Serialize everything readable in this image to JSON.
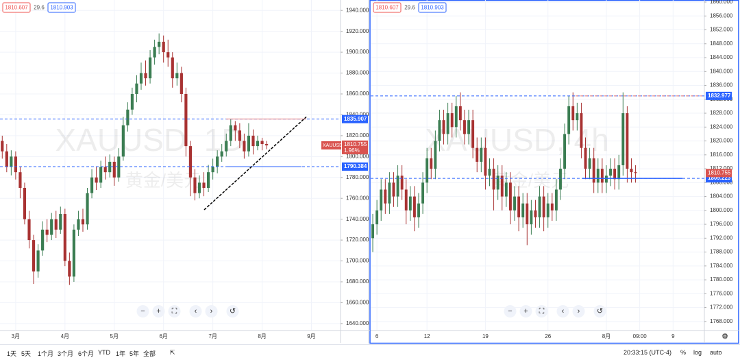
{
  "chart_data": [
    {
      "type": "candlestick",
      "watermark": "XAUUSD, 1D",
      "watermark_sub": "黄金/美元",
      "legend_values": [
        {
          "value": 1810.607,
          "color": "#ef5350"
        },
        {
          "value": 29.6,
          "color": "#555555"
        },
        {
          "value": 1810.903,
          "color": "#2962ff"
        }
      ],
      "categories": [
        null,
        null,
        null,
        "3月",
        null,
        null,
        null,
        null,
        null,
        null,
        null,
        null,
        null,
        null,
        "4月",
        null,
        null,
        null,
        null,
        null,
        null,
        null,
        null,
        null,
        null,
        "5月",
        null,
        null,
        null,
        null,
        null,
        null,
        null,
        null,
        null,
        null,
        "6月",
        null,
        null,
        null,
        null,
        null,
        null,
        null,
        null,
        null,
        null,
        "7月",
        null,
        null,
        null,
        null,
        null,
        null,
        null,
        null,
        null,
        null,
        "8月",
        null,
        null,
        null,
        null,
        null,
        null,
        null,
        null,
        null,
        null,
        "9月",
        null,
        null,
        null,
        null,
        null,
        null
      ],
      "open": [
        1815,
        1805,
        1790,
        1800,
        1785,
        1770,
        1740,
        1720,
        1690,
        1710,
        1730,
        1725,
        1740,
        1730,
        1745,
        1700,
        1685,
        1730,
        1740,
        1735,
        1765,
        1780,
        1775,
        1790,
        1785,
        1795,
        1780,
        1800,
        1830,
        1845,
        1860,
        1870,
        1880,
        1875,
        1895,
        1905,
        1910,
        1900,
        1895,
        1875,
        1880,
        1860,
        1810,
        1780,
        1765,
        1775,
        1770,
        1785,
        1790,
        1800,
        1805,
        1815,
        1830,
        1825,
        1815,
        1805,
        1820,
        1810,
        1815,
        1812,
        null,
        null,
        null,
        null,
        null,
        null,
        null,
        null,
        null,
        null,
        null,
        null,
        null,
        null,
        null,
        null
      ],
      "high": [
        1820,
        1812,
        1806,
        1805,
        1790,
        1775,
        1748,
        1725,
        1716,
        1738,
        1740,
        1746,
        1748,
        1752,
        1750,
        1708,
        1735,
        1748,
        1750,
        1770,
        1788,
        1790,
        1796,
        1800,
        1802,
        1800,
        1808,
        1838,
        1852,
        1866,
        1878,
        1890,
        1892,
        1902,
        1912,
        1918,
        1916,
        1912,
        1900,
        1890,
        1886,
        1866,
        1815,
        1788,
        1782,
        1785,
        1792,
        1798,
        1806,
        1812,
        1822,
        1836,
        1834,
        1832,
        1822,
        1832,
        1826,
        1820,
        1818,
        1815,
        null,
        null,
        null,
        null,
        null,
        null,
        null,
        null,
        null,
        null,
        null,
        null,
        null,
        null,
        null,
        null
      ],
      "low": [
        1798,
        1785,
        1782,
        1778,
        1760,
        1735,
        1712,
        1678,
        1684,
        1705,
        1718,
        1720,
        1722,
        1726,
        1695,
        1677,
        1680,
        1724,
        1728,
        1730,
        1760,
        1768,
        1770,
        1778,
        1780,
        1772,
        1776,
        1796,
        1824,
        1840,
        1852,
        1864,
        1868,
        1870,
        1888,
        1898,
        1890,
        1886,
        1866,
        1868,
        1852,
        1800,
        1762,
        1758,
        1760,
        1762,
        1766,
        1778,
        1784,
        1795,
        1800,
        1810,
        1815,
        1808,
        1798,
        1800,
        1802,
        1806,
        1806,
        1807,
        null,
        null,
        null,
        null,
        null,
        null,
        null,
        null,
        null,
        null,
        null,
        null,
        null,
        null,
        null,
        null
      ],
      "close": [
        1805,
        1790,
        1800,
        1785,
        1770,
        1740,
        1720,
        1690,
        1710,
        1730,
        1725,
        1740,
        1730,
        1745,
        1700,
        1685,
        1730,
        1740,
        1735,
        1765,
        1780,
        1775,
        1790,
        1785,
        1795,
        1780,
        1800,
        1830,
        1845,
        1860,
        1870,
        1880,
        1875,
        1895,
        1905,
        1910,
        1900,
        1895,
        1875,
        1880,
        1860,
        1810,
        1780,
        1765,
        1775,
        1770,
        1785,
        1790,
        1800,
        1805,
        1815,
        1830,
        1825,
        1815,
        1805,
        1820,
        1810,
        1815,
        1812,
        1810.755,
        null,
        null,
        null,
        null,
        null,
        null,
        null,
        null,
        null,
        null,
        null,
        null,
        null,
        null,
        null,
        null
      ],
      "up_color": "#3b7d52",
      "down_color": "#a83232",
      "ylim": [
        1634,
        1950
      ],
      "yticks": [
        {
          "value": 1640,
          "label": "1640.000"
        },
        {
          "value": 1660,
          "label": "1660.000"
        },
        {
          "value": 1680,
          "label": "1680.000"
        },
        {
          "value": 1700,
          "label": "1700.000"
        },
        {
          "value": 1720,
          "label": "1720.000"
        },
        {
          "value": 1740,
          "label": "1740.000"
        },
        {
          "value": 1760,
          "label": "1760.000"
        },
        {
          "value": 1780,
          "label": "1780.000"
        },
        {
          "value": 1800,
          "label": "1800.000"
        },
        {
          "value": 1820,
          "label": "1820.000"
        },
        {
          "value": 1840,
          "label": "1840.000"
        },
        {
          "value": 1860,
          "label": "1860.000"
        },
        {
          "value": 1880,
          "label": "1880.000"
        },
        {
          "value": 1900,
          "label": "1900.000"
        },
        {
          "value": 1920,
          "label": "1920.000"
        },
        {
          "value": 1940,
          "label": "1940.000"
        }
      ],
      "grid": true,
      "hlines": [
        {
          "value": 1835.907,
          "color": "#2962ff"
        },
        {
          "value": 1790.384,
          "color": "#2962ff"
        }
      ],
      "trendline": {
        "start": 1749,
        "end": 1838
      },
      "price_tag": {
        "symbol": "XAUUSD",
        "value": 1810.755,
        "change": {
          "value": 1.96,
          "label": "1.96%"
        },
        "color": "#d9534f"
      }
    },
    {
      "type": "candlestick",
      "watermark": "XAUUSD, 4h",
      "watermark_sub": "黄金/美元",
      "legend_values": [
        {
          "value": 1810.607,
          "color": "#ef5350"
        },
        {
          "value": 29.6,
          "color": "#555555"
        },
        {
          "value": 1810.903,
          "color": "#2962ff"
        }
      ],
      "categories": [
        null,
        "6",
        null,
        null,
        null,
        null,
        null,
        null,
        null,
        null,
        null,
        null,
        null,
        "12",
        null,
        null,
        null,
        null,
        null,
        null,
        null,
        null,
        null,
        null,
        null,
        null,
        null,
        "19",
        null,
        null,
        null,
        null,
        null,
        null,
        null,
        null,
        null,
        null,
        null,
        null,
        null,
        null,
        "26",
        null,
        null,
        null,
        null,
        null,
        null,
        null,
        null,
        null,
        null,
        null,
        null,
        null,
        "8月",
        null,
        null,
        null,
        null,
        null,
        null,
        null,
        "09:00",
        null,
        null,
        null,
        null,
        null,
        null,
        null,
        "9",
        null,
        null,
        null,
        null,
        null,
        null,
        null
      ],
      "open": [
        1792,
        1796,
        1800,
        1806,
        1802,
        1808,
        1804,
        1810,
        1806,
        1800,
        1804,
        1798,
        1802,
        1808,
        1815,
        1812,
        1820,
        1826,
        1822,
        1828,
        1824,
        1830,
        1826,
        1822,
        1826,
        1818,
        1814,
        1818,
        1810,
        1812,
        1806,
        1810,
        1804,
        1808,
        1800,
        1804,
        1798,
        1802,
        1796,
        1800,
        1798,
        1804,
        1798,
        1802,
        1800,
        1806,
        1812,
        1822,
        1830,
        1826,
        1828,
        1818,
        1812,
        1815,
        1808,
        1812,
        1808,
        1810,
        1812,
        1809,
        1813,
        1828,
        1812,
        1811,
        null,
        null,
        null,
        null,
        null,
        null,
        null,
        null,
        null,
        null,
        null,
        null,
        null,
        null,
        null,
        null
      ],
      "high": [
        1799,
        1803,
        1809,
        1809,
        1811,
        1811,
        1813,
        1813,
        1809,
        1807,
        1807,
        1805,
        1811,
        1818,
        1818,
        1823,
        1829,
        1829,
        1831,
        1831,
        1833,
        1834,
        1829,
        1829,
        1829,
        1821,
        1821,
        1821,
        1815,
        1815,
        1813,
        1813,
        1811,
        1811,
        1807,
        1807,
        1805,
        1805,
        1803,
        1803,
        1807,
        1807,
        1805,
        1805,
        1809,
        1815,
        1825,
        1833,
        1834,
        1831,
        1831,
        1821,
        1818,
        1818,
        1815,
        1815,
        1813,
        1815,
        1815,
        1816,
        1834,
        1830,
        1815,
        1813,
        null,
        null,
        null,
        null,
        null,
        null,
        null,
        null,
        null,
        null,
        null,
        null,
        null,
        null,
        null,
        null
      ],
      "low": [
        1788,
        1793,
        1797,
        1799,
        1799,
        1801,
        1801,
        1803,
        1796,
        1797,
        1794,
        1795,
        1799,
        1805,
        1809,
        1809,
        1817,
        1819,
        1819,
        1821,
        1821,
        1823,
        1819,
        1819,
        1815,
        1811,
        1811,
        1806,
        1807,
        1800,
        1803,
        1800,
        1801,
        1796,
        1797,
        1794,
        1795,
        1790,
        1793,
        1795,
        1795,
        1794,
        1795,
        1797,
        1797,
        1803,
        1809,
        1819,
        1823,
        1823,
        1815,
        1809,
        1809,
        1805,
        1805,
        1805,
        1805,
        1807,
        1806,
        1806,
        1810,
        1808,
        1808,
        1808,
        null,
        null,
        null,
        null,
        null,
        null,
        null,
        null,
        null,
        null,
        null,
        null,
        null,
        null,
        null,
        null
      ],
      "close": [
        1796,
        1800,
        1806,
        1802,
        1808,
        1804,
        1810,
        1806,
        1800,
        1804,
        1798,
        1802,
        1808,
        1815,
        1812,
        1820,
        1826,
        1822,
        1828,
        1824,
        1830,
        1826,
        1822,
        1826,
        1818,
        1814,
        1818,
        1810,
        1812,
        1806,
        1810,
        1804,
        1808,
        1800,
        1804,
        1798,
        1802,
        1796,
        1800,
        1798,
        1804,
        1798,
        1802,
        1800,
        1806,
        1812,
        1822,
        1830,
        1826,
        1828,
        1818,
        1812,
        1815,
        1808,
        1812,
        1808,
        1810,
        1812,
        1809,
        1813,
        1828,
        1812,
        1811,
        1810.755,
        null,
        null,
        null,
        null,
        null,
        null,
        null,
        null,
        null,
        null,
        null,
        null,
        null,
        null,
        null,
        null
      ],
      "up_color": "#3b7d52",
      "down_color": "#a83232",
      "ylim": [
        1765.6,
        1860.6
      ],
      "yticks": [
        {
          "value": 1768,
          "label": "1768.000"
        },
        {
          "value": 1772,
          "label": "1772.000"
        },
        {
          "value": 1776,
          "label": "1776.000"
        },
        {
          "value": 1780,
          "label": "1780.000"
        },
        {
          "value": 1784,
          "label": "1784.000"
        },
        {
          "value": 1788,
          "label": "1788.000"
        },
        {
          "value": 1792,
          "label": "1792.000"
        },
        {
          "value": 1796,
          "label": "1796.000"
        },
        {
          "value": 1800,
          "label": "1800.000"
        },
        {
          "value": 1804,
          "label": "1804.000"
        },
        {
          "value": 1808,
          "label": "1808.000"
        },
        {
          "value": 1812,
          "label": "1812.000"
        },
        {
          "value": 1816,
          "label": "1816.000"
        },
        {
          "value": 1820,
          "label": "1820.000"
        },
        {
          "value": 1824,
          "label": "1824.000"
        },
        {
          "value": 1828,
          "label": "1828.000"
        },
        {
          "value": 1832,
          "label": "1832.000"
        },
        {
          "value": 1836,
          "label": "1836.000"
        },
        {
          "value": 1840,
          "label": "1840.000"
        },
        {
          "value": 1844,
          "label": "1844.000"
        },
        {
          "value": 1848,
          "label": "1848.000"
        },
        {
          "value": 1852,
          "label": "1852.000"
        },
        {
          "value": 1856,
          "label": "1856.000"
        },
        {
          "value": 1860,
          "label": "1860.000"
        }
      ],
      "grid": true,
      "hlines": [
        {
          "value": 1832.977,
          "color": "#2962ff"
        },
        {
          "value": 1809.223,
          "color": "#2962ff"
        }
      ],
      "price_tag": {
        "value": 1810.755,
        "color": "#d9534f"
      }
    }
  ],
  "toolbar": {
    "ranges": [
      "1天",
      "5天",
      "1个月",
      "3个月",
      "6个月",
      "YTD",
      "1年",
      "5年",
      "全部"
    ],
    "time": "20:33:15 (UTC-4)",
    "options": [
      "%",
      "log",
      "auto"
    ]
  }
}
